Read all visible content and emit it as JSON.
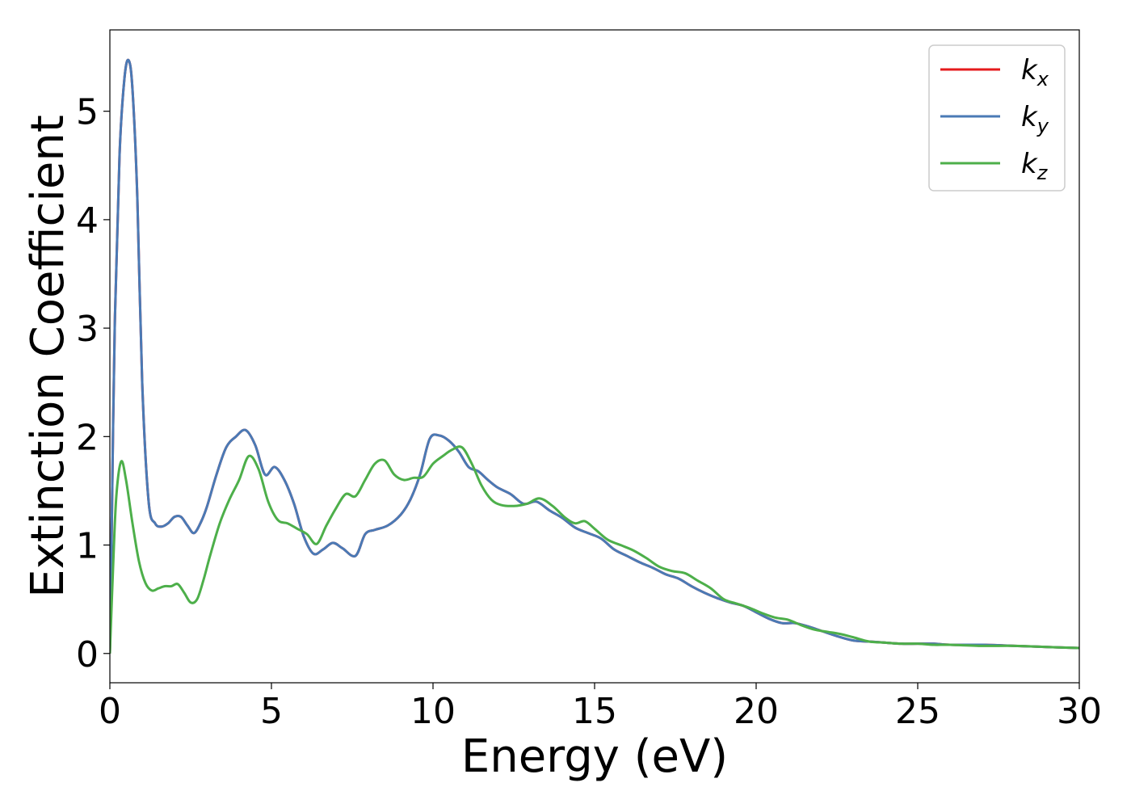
{
  "chart_data": {
    "type": "line",
    "title": "",
    "xlabel": "Energy (eV)",
    "ylabel": "Extinction Coefficient",
    "xlim": [
      0,
      30
    ],
    "ylim": [
      -0.27,
      5.75
    ],
    "xticks": [
      0,
      5,
      10,
      15,
      20,
      25,
      30
    ],
    "yticks": [
      0,
      1,
      2,
      3,
      4,
      5
    ],
    "grid": false,
    "legend_position": "top-right",
    "series": [
      {
        "name": "k",
        "subscript": "x",
        "color": "#e41a1c",
        "x": [
          0,
          0.05,
          0.15,
          0.3,
          0.45,
          0.58,
          0.7,
          0.85,
          1.0,
          1.2,
          1.4,
          1.6,
          1.8,
          2.0,
          2.2,
          2.4,
          2.6,
          2.8,
          3.0,
          3.3,
          3.6,
          3.9,
          4.2,
          4.5,
          4.8,
          5.1,
          5.4,
          5.7,
          6.0,
          6.3,
          6.6,
          6.9,
          7.2,
          7.6,
          7.9,
          8.2,
          8.6,
          9.0,
          9.3,
          9.6,
          9.9,
          10.2,
          10.5,
          10.8,
          11.1,
          11.4,
          11.7,
          12.0,
          12.4,
          12.8,
          13.2,
          13.6,
          14.0,
          14.4,
          14.8,
          15.2,
          15.6,
          16.0,
          16.4,
          16.8,
          17.2,
          17.6,
          18.0,
          18.4,
          18.8,
          19.2,
          19.6,
          20.0,
          20.4,
          20.8,
          21.2,
          21.6,
          22.0,
          22.5,
          23.0,
          23.5,
          24.0,
          24.5,
          25.0,
          25.5,
          26.0,
          27.0,
          28.0,
          29.0,
          30.0
        ],
        "y": [
          0.0,
          1.0,
          3.0,
          4.6,
          5.3,
          5.47,
          5.2,
          4.2,
          2.5,
          1.4,
          1.2,
          1.17,
          1.2,
          1.26,
          1.26,
          1.18,
          1.11,
          1.2,
          1.35,
          1.65,
          1.9,
          2.0,
          2.06,
          1.92,
          1.65,
          1.72,
          1.6,
          1.38,
          1.08,
          0.92,
          0.96,
          1.02,
          0.97,
          0.9,
          1.1,
          1.14,
          1.18,
          1.28,
          1.42,
          1.65,
          1.98,
          2.01,
          1.96,
          1.86,
          1.72,
          1.68,
          1.6,
          1.53,
          1.47,
          1.38,
          1.4,
          1.32,
          1.25,
          1.16,
          1.11,
          1.06,
          0.96,
          0.9,
          0.84,
          0.79,
          0.73,
          0.69,
          0.62,
          0.56,
          0.51,
          0.47,
          0.44,
          0.38,
          0.32,
          0.28,
          0.28,
          0.25,
          0.21,
          0.16,
          0.12,
          0.11,
          0.1,
          0.09,
          0.09,
          0.09,
          0.08,
          0.08,
          0.07,
          0.06,
          0.05
        ]
      },
      {
        "name": "k",
        "subscript": "y",
        "color": "#4a7ab5",
        "x": [
          0,
          0.05,
          0.15,
          0.3,
          0.45,
          0.58,
          0.7,
          0.85,
          1.0,
          1.2,
          1.4,
          1.6,
          1.8,
          2.0,
          2.2,
          2.4,
          2.6,
          2.8,
          3.0,
          3.3,
          3.6,
          3.9,
          4.2,
          4.5,
          4.8,
          5.1,
          5.4,
          5.7,
          6.0,
          6.3,
          6.6,
          6.9,
          7.2,
          7.6,
          7.9,
          8.2,
          8.6,
          9.0,
          9.3,
          9.6,
          9.9,
          10.2,
          10.5,
          10.8,
          11.1,
          11.4,
          11.7,
          12.0,
          12.4,
          12.8,
          13.2,
          13.6,
          14.0,
          14.4,
          14.8,
          15.2,
          15.6,
          16.0,
          16.4,
          16.8,
          17.2,
          17.6,
          18.0,
          18.4,
          18.8,
          19.2,
          19.6,
          20.0,
          20.4,
          20.8,
          21.2,
          21.6,
          22.0,
          22.5,
          23.0,
          23.5,
          24.0,
          24.5,
          25.0,
          25.5,
          26.0,
          27.0,
          28.0,
          29.0,
          30.0
        ],
        "y": [
          0.0,
          1.0,
          3.0,
          4.6,
          5.3,
          5.47,
          5.2,
          4.2,
          2.5,
          1.4,
          1.2,
          1.17,
          1.2,
          1.26,
          1.26,
          1.18,
          1.11,
          1.2,
          1.35,
          1.65,
          1.9,
          2.0,
          2.06,
          1.92,
          1.65,
          1.72,
          1.6,
          1.38,
          1.08,
          0.92,
          0.96,
          1.02,
          0.97,
          0.9,
          1.1,
          1.14,
          1.18,
          1.28,
          1.42,
          1.65,
          1.98,
          2.01,
          1.96,
          1.86,
          1.72,
          1.68,
          1.6,
          1.53,
          1.47,
          1.38,
          1.4,
          1.32,
          1.25,
          1.16,
          1.11,
          1.06,
          0.96,
          0.9,
          0.84,
          0.79,
          0.73,
          0.69,
          0.62,
          0.56,
          0.51,
          0.47,
          0.44,
          0.38,
          0.32,
          0.28,
          0.28,
          0.25,
          0.21,
          0.16,
          0.12,
          0.11,
          0.1,
          0.09,
          0.09,
          0.09,
          0.08,
          0.08,
          0.07,
          0.06,
          0.05
        ]
      },
      {
        "name": "k",
        "subscript": "z",
        "color": "#4daf4a",
        "x": [
          0,
          0.1,
          0.2,
          0.35,
          0.5,
          0.7,
          0.9,
          1.1,
          1.3,
          1.5,
          1.7,
          1.9,
          2.1,
          2.3,
          2.5,
          2.7,
          2.9,
          3.1,
          3.4,
          3.7,
          4.0,
          4.3,
          4.6,
          4.9,
          5.2,
          5.5,
          5.8,
          6.1,
          6.4,
          6.7,
          7.0,
          7.3,
          7.6,
          7.9,
          8.2,
          8.5,
          8.8,
          9.1,
          9.4,
          9.7,
          10.0,
          10.3,
          10.6,
          10.9,
          11.2,
          11.5,
          11.8,
          12.1,
          12.5,
          12.9,
          13.3,
          13.7,
          14.1,
          14.4,
          14.7,
          15.0,
          15.4,
          15.8,
          16.2,
          16.6,
          17.0,
          17.4,
          17.8,
          18.2,
          18.6,
          19.0,
          19.4,
          19.8,
          20.2,
          20.6,
          21.0,
          21.4,
          21.8,
          22.2,
          22.6,
          23.0,
          23.5,
          24.0,
          24.5,
          25.0,
          25.5,
          26.0,
          27.0,
          28.0,
          29.0,
          30.0
        ],
        "y": [
          0.0,
          0.8,
          1.45,
          1.77,
          1.6,
          1.2,
          0.85,
          0.65,
          0.58,
          0.6,
          0.62,
          0.62,
          0.64,
          0.56,
          0.47,
          0.5,
          0.68,
          0.9,
          1.2,
          1.42,
          1.6,
          1.82,
          1.7,
          1.4,
          1.23,
          1.2,
          1.15,
          1.1,
          1.01,
          1.18,
          1.34,
          1.47,
          1.45,
          1.6,
          1.75,
          1.78,
          1.65,
          1.6,
          1.62,
          1.63,
          1.75,
          1.82,
          1.88,
          1.9,
          1.75,
          1.55,
          1.42,
          1.37,
          1.36,
          1.38,
          1.43,
          1.36,
          1.25,
          1.2,
          1.22,
          1.15,
          1.05,
          1.0,
          0.95,
          0.88,
          0.8,
          0.76,
          0.74,
          0.67,
          0.6,
          0.5,
          0.46,
          0.42,
          0.37,
          0.33,
          0.31,
          0.26,
          0.22,
          0.2,
          0.18,
          0.15,
          0.11,
          0.1,
          0.09,
          0.09,
          0.08,
          0.08,
          0.07,
          0.07,
          0.06,
          0.05
        ]
      }
    ]
  }
}
